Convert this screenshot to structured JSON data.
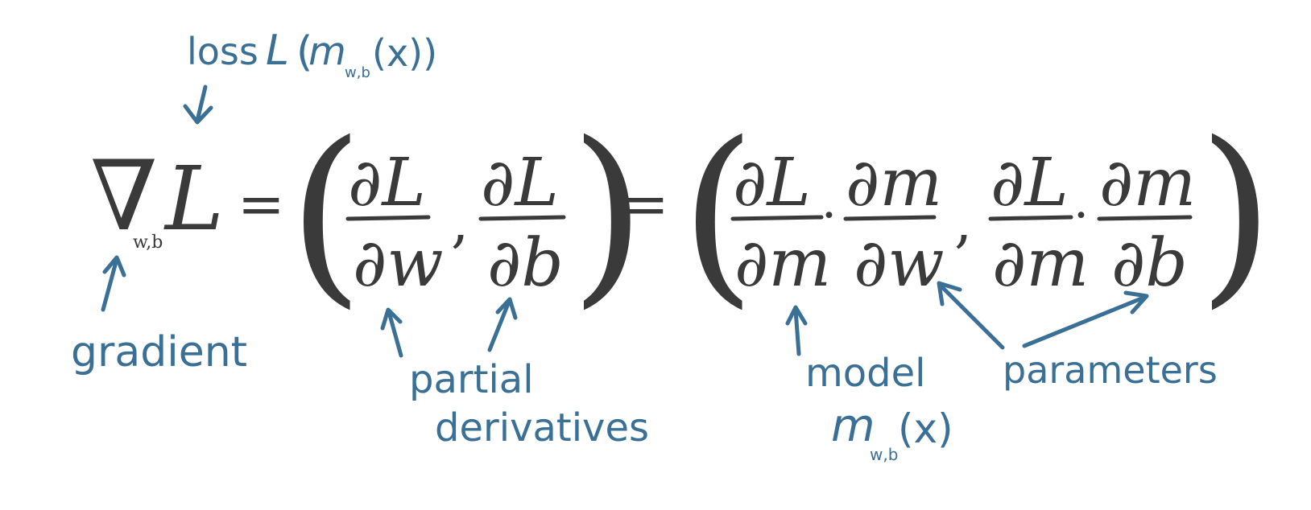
{
  "equation": {
    "nabla": "∇",
    "nabla_subscript": "w,b",
    "loss_symbol": "L",
    "equals": "=",
    "open_paren": "(",
    "close_paren": ")",
    "comma": ",",
    "dot": "·",
    "partial": "∂",
    "frac1": {
      "num": "∂L",
      "den": "∂w"
    },
    "frac2": {
      "num": "∂L",
      "den": "∂b"
    },
    "chain1": {
      "num_a": "∂L",
      "den_a": "∂m",
      "num_b": "∂m",
      "den_b": "∂w"
    },
    "chain2": {
      "num_a": "∂L",
      "den_a": "∂m",
      "num_b": "∂m",
      "den_b": "∂b"
    }
  },
  "annotations": {
    "loss": {
      "word": "loss",
      "expr_L": "L",
      "expr_open": "(",
      "expr_m": "m",
      "expr_sub": "w,b",
      "expr_arg": "(x))"
    },
    "gradient": "gradient",
    "partial_derivatives": {
      "line1": "partial",
      "line2": "derivatives"
    },
    "model": {
      "word": "model",
      "expr_m": "m",
      "expr_sub": "w,b",
      "expr_arg": "(x)"
    },
    "parameters": "parameters"
  },
  "colors": {
    "ink_dark": "#3a3a3a",
    "ink_blue": "#3a6f96",
    "background": "#ffffff"
  }
}
